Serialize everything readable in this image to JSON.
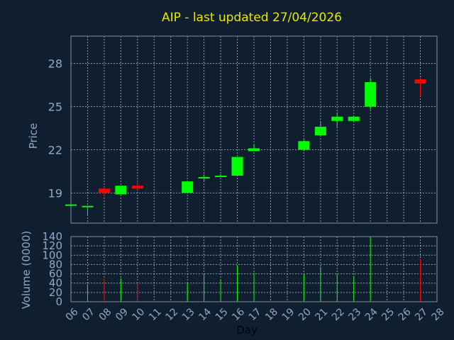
{
  "chart_data": [
    {
      "type": "candlestick",
      "title": "AIP - last updated 27/04/2026",
      "ylabel": "Price",
      "ylim": [
        16.9,
        29.9
      ],
      "yticks": [
        19,
        22,
        25,
        28
      ],
      "xlim": [
        6,
        28
      ],
      "grid": true,
      "up_color": "#00ff00",
      "down_color": "#ff0000",
      "candles": [
        {
          "day": 6,
          "open": 18.2,
          "high": 18.2,
          "low": 18.2,
          "close": 18.2
        },
        {
          "day": 7,
          "open": 18.1,
          "high": 18.1,
          "low": 17.4,
          "close": 18.1
        },
        {
          "day": 8,
          "open": 19.3,
          "high": 19.4,
          "low": 18.7,
          "close": 19.0
        },
        {
          "day": 9,
          "open": 18.9,
          "high": 19.5,
          "low": 18.9,
          "close": 19.5
        },
        {
          "day": 10,
          "open": 19.5,
          "high": 19.9,
          "low": 19.2,
          "close": 19.3
        },
        {
          "day": 13,
          "open": 19.0,
          "high": 19.8,
          "low": 19.0,
          "close": 19.8
        },
        {
          "day": 14,
          "open": 20.0,
          "high": 20.3,
          "low": 19.8,
          "close": 20.1
        },
        {
          "day": 15,
          "open": 20.2,
          "high": 20.3,
          "low": 20.1,
          "close": 20.2
        },
        {
          "day": 16,
          "open": 20.2,
          "high": 21.5,
          "low": 20.2,
          "close": 21.5
        },
        {
          "day": 17,
          "open": 21.9,
          "high": 22.4,
          "low": 21.9,
          "close": 22.1
        },
        {
          "day": 20,
          "open": 22.0,
          "high": 22.7,
          "low": 21.9,
          "close": 22.6
        },
        {
          "day": 21,
          "open": 23.0,
          "high": 24.0,
          "low": 23.0,
          "close": 23.6
        },
        {
          "day": 22,
          "open": 24.0,
          "high": 24.6,
          "low": 23.6,
          "close": 24.3
        },
        {
          "day": 23,
          "open": 24.0,
          "high": 24.3,
          "low": 24.0,
          "close": 24.3
        },
        {
          "day": 24,
          "open": 25.0,
          "high": 27.0,
          "low": 24.8,
          "close": 26.7
        },
        {
          "day": 27,
          "open": 26.9,
          "high": 27.0,
          "low": 25.7,
          "close": 26.6
        }
      ]
    },
    {
      "type": "bar",
      "ylabel": "Volume (0000)",
      "xlabel": "Day",
      "ylim": [
        0,
        140
      ],
      "yticks": [
        0,
        20,
        40,
        60,
        80,
        100,
        120,
        140
      ],
      "xlim": [
        6,
        28
      ],
      "grid": true,
      "categories": [
        "06",
        "07",
        "08",
        "09",
        "10",
        "11",
        "12",
        "13",
        "14",
        "15",
        "16",
        "17",
        "18",
        "19",
        "20",
        "21",
        "22",
        "23",
        "24",
        "25",
        "26",
        "27",
        "28"
      ],
      "bars": [
        {
          "day": 7,
          "value": 38,
          "color": "#00ff00"
        },
        {
          "day": 8,
          "value": 50,
          "color": "#ff0000"
        },
        {
          "day": 9,
          "value": 50,
          "color": "#00ff00"
        },
        {
          "day": 10,
          "value": 40,
          "color": "#ff0000"
        },
        {
          "day": 13,
          "value": 40,
          "color": "#00ff00"
        },
        {
          "day": 14,
          "value": 58,
          "color": "#00ff00"
        },
        {
          "day": 15,
          "value": 48,
          "color": "#00ff00"
        },
        {
          "day": 16,
          "value": 78,
          "color": "#00ff00"
        },
        {
          "day": 17,
          "value": 62,
          "color": "#00ff00"
        },
        {
          "day": 20,
          "value": 60,
          "color": "#00ff00"
        },
        {
          "day": 21,
          "value": 75,
          "color": "#00ff00"
        },
        {
          "day": 22,
          "value": 58,
          "color": "#00ff00"
        },
        {
          "day": 23,
          "value": 55,
          "color": "#00ff00"
        },
        {
          "day": 24,
          "value": 138,
          "color": "#00ff00"
        },
        {
          "day": 27,
          "value": 92,
          "color": "#ff0000"
        }
      ]
    }
  ]
}
